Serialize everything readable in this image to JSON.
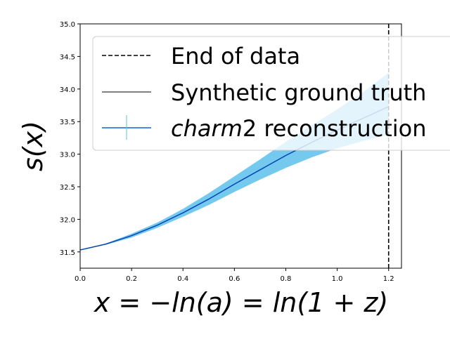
{
  "chart_data": {
    "type": "line",
    "xlabel": "x = −ln(a) = ln(1 + z)",
    "ylabel": "s(x)",
    "xlim": [
      0.0,
      1.25
    ],
    "ylim": [
      31.25,
      35.0
    ],
    "xticks": [
      "0.0",
      "0.2",
      "0.4",
      "0.6",
      "0.8",
      "1.0",
      "1.2"
    ],
    "yticks": [
      "31.5",
      "32.0",
      "32.5",
      "33.0",
      "33.5",
      "34.0",
      "34.5",
      "35.0"
    ],
    "grid": false,
    "legend_position": "top-right",
    "end_of_data_x": 1.2,
    "x": [
      0.0,
      0.1,
      0.2,
      0.3,
      0.4,
      0.5,
      0.6,
      0.7,
      0.8,
      0.9,
      1.0,
      1.1,
      1.2
    ],
    "series": [
      {
        "name": "End of data",
        "style": "dashed",
        "color": "#000000"
      },
      {
        "name": "Synthetic ground truth",
        "color": "#000000",
        "values": [
          31.53,
          31.62,
          31.75,
          31.91,
          32.1,
          32.31,
          32.54,
          32.76,
          32.98,
          33.18,
          33.37,
          33.55,
          33.73
        ]
      },
      {
        "name": "charm2 reconstruction",
        "name_italic_part": "charm",
        "name_rest": "2 reconstruction",
        "color": "#1060e0",
        "band_color": "#5bc0eb",
        "values": [
          31.53,
          31.62,
          31.75,
          31.91,
          32.1,
          32.31,
          32.54,
          32.76,
          32.98,
          33.18,
          33.37,
          33.55,
          33.73
        ],
        "lower": [
          31.53,
          31.61,
          31.72,
          31.87,
          32.04,
          32.22,
          32.42,
          32.61,
          32.79,
          32.95,
          33.09,
          33.2,
          33.3
        ],
        "upper": [
          31.53,
          31.63,
          31.78,
          31.95,
          32.16,
          32.4,
          32.66,
          32.92,
          33.19,
          33.44,
          33.69,
          33.95,
          34.25
        ]
      }
    ]
  }
}
